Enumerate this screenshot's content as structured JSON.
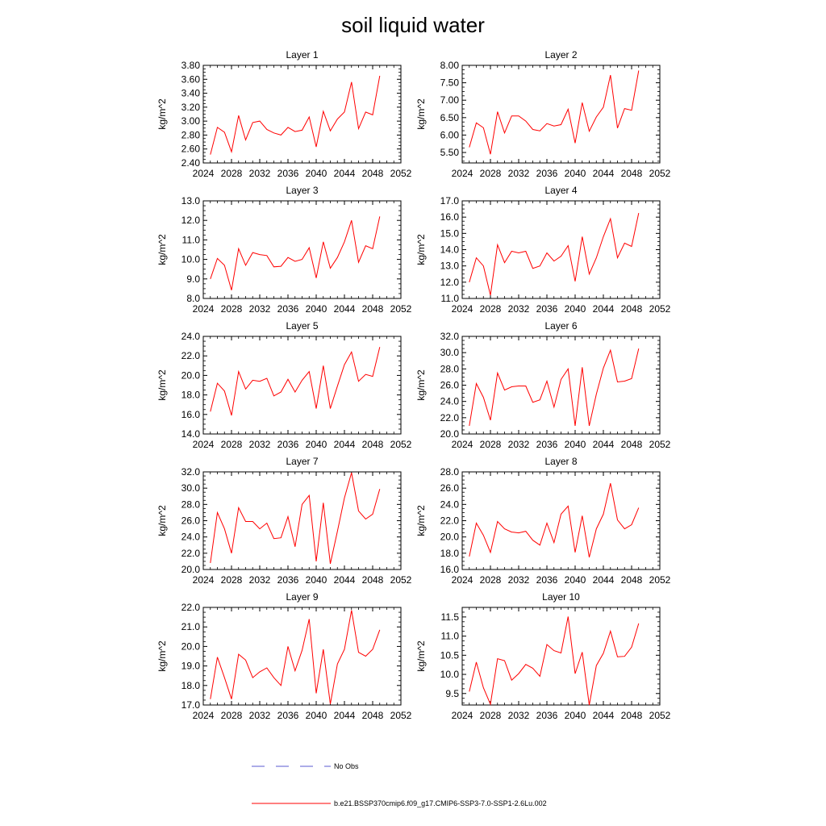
{
  "title": "soil liquid water",
  "legend": {
    "obs_label": "No Obs",
    "obs_color": "#5a5ad0",
    "model_label": "b.e21.BSSP370cmip6.f09_g17.CMIP6-SSP3-7.0-SSP1-2.6Lu.002",
    "model_color": "#ff0000"
  },
  "chart_data": [
    {
      "type": "line",
      "title": "Layer 1",
      "ylabel": "kg/m^2",
      "xlim": [
        2024,
        2052
      ],
      "ylim": [
        2.4,
        3.8
      ],
      "x_ticks": [
        "2024",
        "2028",
        "2032",
        "2036",
        "2040",
        "2044",
        "2048",
        "2052"
      ],
      "y_ticks": [
        "2.40",
        "2.60",
        "2.80",
        "3.00",
        "3.20",
        "3.40",
        "3.60",
        "3.80"
      ],
      "x": [
        2025,
        2026,
        2027,
        2028,
        2029,
        2030,
        2031,
        2032,
        2033,
        2034,
        2035,
        2036,
        2037,
        2038,
        2039,
        2040,
        2041,
        2042,
        2043,
        2044,
        2045,
        2046,
        2047,
        2048,
        2049
      ],
      "series": [
        {
          "name": "b.e21.BSSP370cmip6.f09_g17.CMIP6-SSP3-7.0-SSP1-2.6Lu.002",
          "values": [
            2.52,
            2.91,
            2.84,
            2.56,
            3.08,
            2.73,
            2.98,
            3.0,
            2.88,
            2.83,
            2.8,
            2.91,
            2.85,
            2.87,
            3.06,
            2.63,
            3.14,
            2.86,
            3.03,
            3.13,
            3.56,
            2.89,
            3.13,
            3.09,
            3.65
          ]
        }
      ]
    },
    {
      "type": "line",
      "title": "Layer 2",
      "ylabel": "kg/m^2",
      "xlim": [
        2024,
        2052
      ],
      "ylim": [
        5.2,
        8.0
      ],
      "x_ticks": [
        "2024",
        "2028",
        "2032",
        "2036",
        "2040",
        "2044",
        "2048",
        "2052"
      ],
      "y_ticks": [
        "5.50",
        "6.00",
        "6.50",
        "7.00",
        "7.50",
        "8.00"
      ],
      "x": [
        2025,
        2026,
        2027,
        2028,
        2029,
        2030,
        2031,
        2032,
        2033,
        2034,
        2035,
        2036,
        2037,
        2038,
        2039,
        2040,
        2041,
        2042,
        2043,
        2044,
        2045,
        2046,
        2047,
        2048,
        2049
      ],
      "series": [
        {
          "name": "b.e21.BSSP370cmip6.f09_g17.CMIP6-SSP3-7.0-SSP1-2.6Lu.002",
          "values": [
            5.65,
            6.35,
            6.21,
            5.45,
            6.67,
            6.06,
            6.55,
            6.55,
            6.4,
            6.16,
            6.12,
            6.33,
            6.26,
            6.3,
            6.74,
            5.77,
            6.93,
            6.11,
            6.52,
            6.8,
            7.72,
            6.2,
            6.76,
            6.71,
            7.85
          ]
        }
      ]
    },
    {
      "type": "line",
      "title": "Layer 3",
      "ylabel": "kg/m^2",
      "xlim": [
        2024,
        2052
      ],
      "ylim": [
        8.0,
        13.0
      ],
      "x_ticks": [
        "2024",
        "2028",
        "2032",
        "2036",
        "2040",
        "2044",
        "2048",
        "2052"
      ],
      "y_ticks": [
        "8.0",
        "9.0",
        "10.0",
        "11.0",
        "12.0",
        "13.0"
      ],
      "x": [
        2025,
        2026,
        2027,
        2028,
        2029,
        2030,
        2031,
        2032,
        2033,
        2034,
        2035,
        2036,
        2037,
        2038,
        2039,
        2040,
        2041,
        2042,
        2043,
        2044,
        2045,
        2046,
        2047,
        2048,
        2049
      ],
      "series": [
        {
          "name": "b.e21.BSSP370cmip6.f09_g17.CMIP6-SSP3-7.0-SSP1-2.6Lu.002",
          "values": [
            9.0,
            10.05,
            9.7,
            8.42,
            10.55,
            9.7,
            10.35,
            10.25,
            10.2,
            9.62,
            9.65,
            10.1,
            9.9,
            10.0,
            10.6,
            9.05,
            10.9,
            9.55,
            10.1,
            10.9,
            12.0,
            9.85,
            10.7,
            10.55,
            12.2
          ]
        }
      ]
    },
    {
      "type": "line",
      "title": "Layer 4",
      "ylabel": "kg/m^2",
      "xlim": [
        2024,
        2052
      ],
      "ylim": [
        11.0,
        17.0
      ],
      "x_ticks": [
        "2024",
        "2028",
        "2032",
        "2036",
        "2040",
        "2044",
        "2048",
        "2052"
      ],
      "y_ticks": [
        "11.0",
        "12.0",
        "13.0",
        "14.0",
        "15.0",
        "16.0",
        "17.0"
      ],
      "x": [
        2025,
        2026,
        2027,
        2028,
        2029,
        2030,
        2031,
        2032,
        2033,
        2034,
        2035,
        2036,
        2037,
        2038,
        2039,
        2040,
        2041,
        2042,
        2043,
        2044,
        2045,
        2046,
        2047,
        2048,
        2049
      ],
      "series": [
        {
          "name": "b.e21.BSSP370cmip6.f09_g17.CMIP6-SSP3-7.0-SSP1-2.6Lu.002",
          "values": [
            12.0,
            13.5,
            13.0,
            11.2,
            14.3,
            13.2,
            13.9,
            13.8,
            13.9,
            12.85,
            13.0,
            13.8,
            13.3,
            13.6,
            14.25,
            12.05,
            14.8,
            12.5,
            13.5,
            14.8,
            15.9,
            13.5,
            14.4,
            14.2,
            16.25
          ]
        }
      ]
    },
    {
      "type": "line",
      "title": "Layer 5",
      "ylabel": "kg/m^2",
      "xlim": [
        2024,
        2052
      ],
      "ylim": [
        14.0,
        24.0
      ],
      "x_ticks": [
        "2024",
        "2028",
        "2032",
        "2036",
        "2040",
        "2044",
        "2048",
        "2052"
      ],
      "y_ticks": [
        "14.0",
        "16.0",
        "18.0",
        "20.0",
        "22.0",
        "24.0"
      ],
      "x": [
        2025,
        2026,
        2027,
        2028,
        2029,
        2030,
        2031,
        2032,
        2033,
        2034,
        2035,
        2036,
        2037,
        2038,
        2039,
        2040,
        2041,
        2042,
        2043,
        2044,
        2045,
        2046,
        2047,
        2048,
        2049
      ],
      "series": [
        {
          "name": "b.e21.BSSP370cmip6.f09_g17.CMIP6-SSP3-7.0-SSP1-2.6Lu.002",
          "values": [
            16.3,
            19.2,
            18.4,
            15.9,
            20.4,
            18.6,
            19.5,
            19.4,
            19.7,
            17.9,
            18.3,
            19.6,
            18.3,
            19.5,
            20.4,
            16.6,
            21.0,
            16.6,
            18.9,
            21.1,
            22.4,
            19.4,
            20.1,
            19.9,
            22.9
          ]
        }
      ]
    },
    {
      "type": "line",
      "title": "Layer 6",
      "ylabel": "kg/m^2",
      "xlim": [
        2024,
        2052
      ],
      "ylim": [
        20.0,
        32.0
      ],
      "x_ticks": [
        "2024",
        "2028",
        "2032",
        "2036",
        "2040",
        "2044",
        "2048",
        "2052"
      ],
      "y_ticks": [
        "20.0",
        "22.0",
        "24.0",
        "26.0",
        "28.0",
        "30.0",
        "32.0"
      ],
      "x": [
        2025,
        2026,
        2027,
        2028,
        2029,
        2030,
        2031,
        2032,
        2033,
        2034,
        2035,
        2036,
        2037,
        2038,
        2039,
        2040,
        2041,
        2042,
        2043,
        2044,
        2045,
        2046,
        2047,
        2048,
        2049
      ],
      "series": [
        {
          "name": "b.e21.BSSP370cmip6.f09_g17.CMIP6-SSP3-7.0-SSP1-2.6Lu.002",
          "values": [
            21.0,
            26.2,
            24.5,
            21.7,
            27.5,
            25.4,
            25.8,
            25.9,
            25.9,
            23.9,
            24.2,
            26.5,
            23.3,
            26.7,
            28.0,
            21.0,
            28.2,
            21.0,
            24.9,
            28.1,
            30.3,
            26.4,
            26.5,
            26.8,
            30.5
          ]
        }
      ]
    },
    {
      "type": "line",
      "title": "Layer 7",
      "ylabel": "kg/m^2",
      "xlim": [
        2024,
        2052
      ],
      "ylim": [
        20.0,
        32.0
      ],
      "x_ticks": [
        "2024",
        "2028",
        "2032",
        "2036",
        "2040",
        "2044",
        "2048",
        "2052"
      ],
      "y_ticks": [
        "20.0",
        "22.0",
        "24.0",
        "26.0",
        "28.0",
        "30.0",
        "32.0"
      ],
      "x": [
        2025,
        2026,
        2027,
        2028,
        2029,
        2030,
        2031,
        2032,
        2033,
        2034,
        2035,
        2036,
        2037,
        2038,
        2039,
        2040,
        2041,
        2042,
        2043,
        2044,
        2045,
        2046,
        2047,
        2048,
        2049
      ],
      "series": [
        {
          "name": "b.e21.BSSP370cmip6.f09_g17.CMIP6-SSP3-7.0-SSP1-2.6Lu.002",
          "values": [
            20.8,
            27.0,
            25.0,
            22.0,
            27.6,
            25.9,
            25.9,
            25.0,
            25.7,
            23.8,
            23.9,
            26.5,
            22.8,
            28.0,
            29.1,
            21.0,
            28.2,
            20.7,
            24.7,
            28.8,
            31.9,
            27.2,
            26.2,
            26.8,
            29.9
          ]
        }
      ]
    },
    {
      "type": "line",
      "title": "Layer 8",
      "ylabel": "kg/m^2",
      "xlim": [
        2024,
        2052
      ],
      "ylim": [
        16.0,
        28.0
      ],
      "x_ticks": [
        "2024",
        "2028",
        "2032",
        "2036",
        "2040",
        "2044",
        "2048",
        "2052"
      ],
      "y_ticks": [
        "16.0",
        "18.0",
        "20.0",
        "22.0",
        "24.0",
        "26.0",
        "28.0"
      ],
      "x": [
        2025,
        2026,
        2027,
        2028,
        2029,
        2030,
        2031,
        2032,
        2033,
        2034,
        2035,
        2036,
        2037,
        2038,
        2039,
        2040,
        2041,
        2042,
        2043,
        2044,
        2045,
        2046,
        2047,
        2048,
        2049
      ],
      "series": [
        {
          "name": "b.e21.BSSP370cmip6.f09_g17.CMIP6-SSP3-7.0-SSP1-2.6Lu.002",
          "values": [
            17.6,
            21.7,
            20.2,
            18.1,
            21.9,
            21.0,
            20.6,
            20.5,
            20.7,
            19.6,
            19.0,
            21.7,
            19.3,
            22.8,
            23.8,
            18.1,
            22.6,
            17.5,
            21.0,
            22.8,
            26.6,
            22.1,
            21.0,
            21.5,
            23.6
          ]
        }
      ]
    },
    {
      "type": "line",
      "title": "Layer 9",
      "ylabel": "kg/m^2",
      "xlim": [
        2024,
        2052
      ],
      "ylim": [
        17.0,
        22.0
      ],
      "x_ticks": [
        "2024",
        "2028",
        "2032",
        "2036",
        "2040",
        "2044",
        "2048",
        "2052"
      ],
      "y_ticks": [
        "17.0",
        "18.0",
        "19.0",
        "20.0",
        "21.0",
        "22.0"
      ],
      "x": [
        2025,
        2026,
        2027,
        2028,
        2029,
        2030,
        2031,
        2032,
        2033,
        2034,
        2035,
        2036,
        2037,
        2038,
        2039,
        2040,
        2041,
        2042,
        2043,
        2044,
        2045,
        2046,
        2047,
        2048,
        2049
      ],
      "series": [
        {
          "name": "b.e21.BSSP370cmip6.f09_g17.CMIP6-SSP3-7.0-SSP1-2.6Lu.002",
          "values": [
            17.3,
            19.45,
            18.4,
            17.3,
            19.6,
            19.3,
            18.4,
            18.7,
            18.9,
            18.4,
            18.0,
            20.0,
            18.75,
            19.8,
            21.4,
            17.6,
            19.85,
            17.05,
            19.1,
            19.85,
            21.85,
            19.7,
            19.5,
            19.85,
            20.85
          ]
        }
      ]
    },
    {
      "type": "line",
      "title": "Layer 10",
      "ylabel": "kg/m^2",
      "xlim": [
        2024,
        2052
      ],
      "ylim": [
        9.2,
        11.75
      ],
      "x_ticks": [
        "2024",
        "2028",
        "2032",
        "2036",
        "2040",
        "2044",
        "2048",
        "2052"
      ],
      "y_ticks": [
        "9.5",
        "10.0",
        "10.5",
        "11.0",
        "11.5"
      ],
      "x": [
        2025,
        2026,
        2027,
        2028,
        2029,
        2030,
        2031,
        2032,
        2033,
        2034,
        2035,
        2036,
        2037,
        2038,
        2039,
        2040,
        2041,
        2042,
        2043,
        2044,
        2045,
        2046,
        2047,
        2048,
        2049
      ],
      "series": [
        {
          "name": "b.e21.BSSP370cmip6.f09_g17.CMIP6-SSP3-7.0-SSP1-2.6Lu.002",
          "values": [
            9.55,
            10.32,
            9.65,
            9.22,
            10.41,
            10.36,
            9.85,
            10.02,
            10.26,
            10.16,
            9.95,
            10.78,
            10.62,
            10.56,
            11.51,
            10.02,
            10.58,
            9.2,
            10.23,
            10.55,
            11.13,
            10.46,
            10.47,
            10.71,
            11.33
          ]
        }
      ]
    }
  ]
}
